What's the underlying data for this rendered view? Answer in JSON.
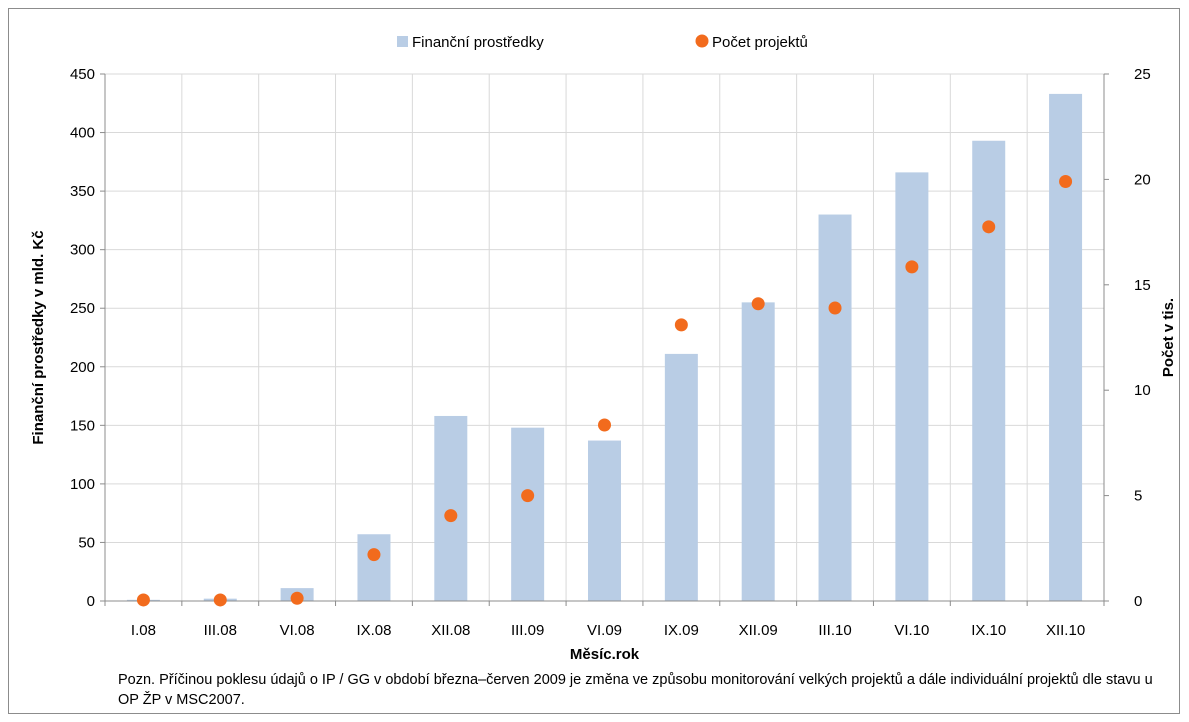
{
  "chart_data": {
    "type": "bar+scatter",
    "categories": [
      "I.08",
      "III.08",
      "VI.08",
      "IX.08",
      "XII.08",
      "III.09",
      "VI.09",
      "IX.09",
      "XII.09",
      "III.10",
      "VI.10",
      "IX.10",
      "XII.10"
    ],
    "series": [
      {
        "name": "Finanční prostředky",
        "type": "bar",
        "axis": "left",
        "color": "#b9cde5",
        "values": [
          1,
          2,
          11,
          57,
          158,
          148,
          137,
          211,
          255,
          330,
          366,
          393,
          433
        ]
      },
      {
        "name": "Počet projektů",
        "type": "scatter",
        "axis": "right",
        "color": "#f26b1d",
        "values": [
          0.05,
          0.05,
          0.13,
          2.2,
          4.05,
          5.0,
          8.35,
          13.1,
          14.1,
          13.9,
          15.85,
          17.75,
          19.9
        ]
      }
    ],
    "xlabel": "Měsíc.rok",
    "ylabel": "Finanční prostředky v mld. Kč",
    "y2label": "Počet v tis.",
    "ylim": [
      0,
      450
    ],
    "yticks": [
      "0",
      "50",
      "100",
      "150",
      "200",
      "250",
      "300",
      "350",
      "400",
      "450"
    ],
    "y2lim": [
      0,
      25
    ],
    "y2ticks": [
      "0",
      "5",
      "10",
      "15",
      "20",
      "25"
    ],
    "grid": true,
    "legend_position": "top-center"
  },
  "note": "Pozn. Příčinou poklesu údajů o IP / GG v období  března–červen 2009 je změna ve způsobu monitorování velkých projektů a  dále individuální projektů dle stavu u OP ŽP v MSC2007."
}
